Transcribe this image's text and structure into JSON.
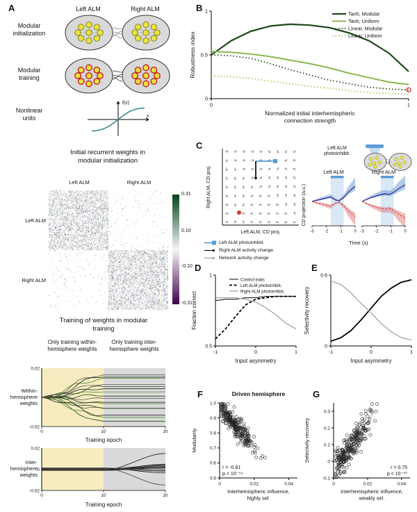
{
  "panelA": {
    "label": "A",
    "col_headers": [
      "Left ALM",
      "Right ALM"
    ],
    "row_labels": [
      "Modular initialization",
      "Modular training",
      "Nonlinear units"
    ],
    "sigmoid": {
      "fx_label": "f(x)",
      "x_label": "x"
    }
  },
  "panelB": {
    "label": "B",
    "chart_data": {
      "type": "line",
      "xlabel": "Normalized initial interhemispheric\nconnection strength",
      "ylabel": "Robustness index",
      "xlim": [
        0,
        1
      ],
      "ylim": [
        0,
        1
      ],
      "xticks": [
        0,
        1
      ],
      "yticks": [
        0,
        0.5,
        1
      ],
      "x": [
        0,
        0.1,
        0.2,
        0.3,
        0.4,
        0.5,
        0.6,
        0.7,
        0.8,
        0.9,
        1
      ],
      "series": [
        {
          "name": "Tanh, Modular",
          "color": "#1d4718",
          "style": "solid",
          "width": 2.2,
          "y": [
            0.5,
            0.66,
            0.77,
            0.83,
            0.85,
            0.84,
            0.81,
            0.75,
            0.66,
            0.52,
            0.31
          ]
        },
        {
          "name": "Tanh, Uniform",
          "color": "#8ab84e",
          "style": "solid",
          "width": 2,
          "y": [
            0.54,
            0.53,
            0.51,
            0.48,
            0.44,
            0.4,
            0.35,
            0.29,
            0.24,
            0.19,
            0.16
          ]
        },
        {
          "name": "Linear, Modular",
          "color": "#1d4718",
          "style": "dotted",
          "width": 1.8,
          "y": [
            0.5,
            0.49,
            0.46,
            0.4,
            0.33,
            0.27,
            0.21,
            0.17,
            0.13,
            0.11,
            0.1
          ]
        },
        {
          "name": "Linear, Uniform",
          "color": "#a9cb57",
          "style": "dotted",
          "width": 1.8,
          "y": [
            0.26,
            0.25,
            0.23,
            0.2,
            0.17,
            0.14,
            0.12,
            0.09,
            0.07,
            0.06,
            0.05
          ]
        }
      ],
      "endpoint_marker": {
        "x": 1,
        "y": 0.1,
        "color": "#d0342c"
      },
      "legend_position": "top-right"
    }
  },
  "heatmap": {
    "title": "Initial recurrent weights in modular initialization",
    "col_labels": [
      "Left ALM",
      "Right ALM"
    ],
    "row_labels": [
      "Left ALM",
      "Right ALM"
    ],
    "colorbar_ticks": [
      "0.31",
      "0.10",
      "-0.10",
      "-0.31"
    ],
    "chart_data": {
      "type": "heatmap",
      "structure": "2x2 block matrix: dense random weights within Left-Left and Right-Right blocks, sparse near-zero weights in off-diagonal blocks",
      "vmin": -0.31,
      "vmax": 0.31,
      "colormap": {
        "positive": "#00441b",
        "zero": "#f7f7f7",
        "negative": "#40004b"
      },
      "noise_seed": 42,
      "diag_density": 0.5,
      "offdiag_density": 0.03
    }
  },
  "training": {
    "title": "Training of weights in modular training",
    "phase_labels": [
      "Only training within-hemisphere weights",
      "Only training inter-hemisphere weights"
    ],
    "xlabel": "Training epoch",
    "chart_data": [
      {
        "type": "line",
        "mode": "within",
        "ylabel": "Within-hemisphere weights",
        "ylim": [
          -0.02,
          0.02
        ],
        "yticks": [
          0.02,
          -0.02
        ],
        "xlim": [
          0,
          20
        ],
        "xticks": [
          0,
          10,
          20
        ],
        "phase_split": 10,
        "n_lines": 16,
        "seed": 5,
        "line_colors": [
          "#1d4718",
          "#4e8c31",
          "#111111",
          "#555555"
        ],
        "phase_bg": [
          "#f6ecc0",
          "#d9d9d9"
        ]
      },
      {
        "type": "line",
        "mode": "inter",
        "ylabel": "Inter-hemisphere weights",
        "ylim": [
          -0.02,
          0.02
        ],
        "yticks": [
          0.02,
          0,
          -0.02
        ],
        "xlim": [
          0,
          20
        ],
        "xticks": [
          0,
          10,
          20
        ],
        "phase_split": 10,
        "n_lines": 14,
        "seed": 9,
        "line_colors": [
          "#111111",
          "#444444"
        ],
        "phase_bg": [
          "#f6ecc0",
          "#d9d9d9"
        ]
      }
    ]
  },
  "panelC": {
    "label": "C",
    "quiver": {
      "xlabel": "Left ALM, CD proj.",
      "ylabel": "Right ALM, CD proj."
    },
    "schematic_label": "Left ALM photoinhibit.",
    "legend": [
      {
        "label": "Left ALM photoinhibit.",
        "color": "#5b9bd5",
        "glyph": "line-square"
      },
      {
        "label": "Right ALM activity change",
        "color": "#111111",
        "glyph": "arrow"
      },
      {
        "label": "Network activity change",
        "color": "#9e9e9e",
        "glyph": "arrow"
      }
    ],
    "miniplots": {
      "titles": [
        "Left ALM",
        "Right ALM"
      ],
      "ylabel": "CD projection (a.u.)",
      "xlabel": "Time (s)",
      "xticks": [
        -3,
        -2,
        -1,
        0
      ],
      "inhibition_window": [
        -1.7,
        -0.8
      ]
    }
  },
  "panelD": {
    "label": "D",
    "chart_data": {
      "type": "line",
      "xlabel": "Input asymmetry",
      "ylabel": "Fraction correct",
      "xlim": [
        -1,
        1
      ],
      "ylim": [
        0.5,
        1
      ],
      "xticks": [
        -1,
        0,
        1
      ],
      "yticks": [
        0.5,
        1
      ],
      "x": [
        -1,
        -0.75,
        -0.5,
        -0.25,
        0,
        0.25,
        0.5,
        0.75,
        1
      ],
      "series": [
        {
          "name": "Control trials",
          "color": "#000000",
          "style": "solid",
          "width": 1,
          "y": [
            0.82,
            0.83,
            0.83,
            0.84,
            0.84,
            0.85,
            0.85,
            0.85,
            0.85
          ]
        },
        {
          "name": "Left ALM photoinhibit.",
          "color": "#000000",
          "style": "dashed",
          "width": 1.8,
          "y": [
            0.55,
            0.62,
            0.71,
            0.79,
            0.83,
            0.84,
            0.85,
            0.85,
            0.85
          ]
        },
        {
          "name": "Right ALM photoinhibit.",
          "color": "#a9a9a9",
          "style": "solid",
          "width": 1.4,
          "y": [
            0.84,
            0.84,
            0.84,
            0.83,
            0.81,
            0.77,
            0.72,
            0.66,
            0.62
          ]
        }
      ],
      "legend_position": "top"
    }
  },
  "panelE": {
    "label": "E",
    "chart_data": {
      "type": "line",
      "xlabel": "Input asymmetry",
      "ylabel": "Selectivity recovery",
      "xlim": [
        -1,
        1
      ],
      "ylim": [
        0,
        0.6
      ],
      "xticks": [
        -1,
        0,
        1
      ],
      "yticks": [
        0,
        0.6
      ],
      "x": [
        -1,
        -0.75,
        -0.5,
        -0.25,
        0,
        0.25,
        0.5,
        0.75,
        1
      ],
      "series": [
        {
          "name": "Left ALM photoinhibit.",
          "color": "#000000",
          "style": "solid",
          "width": 1.8,
          "y": [
            0.04,
            0.07,
            0.13,
            0.22,
            0.32,
            0.42,
            0.49,
            0.54,
            0.56
          ]
        },
        {
          "name": "Right ALM photoinhibit.",
          "color": "#a9a9a9",
          "style": "solid",
          "width": 1.4,
          "y": [
            0.55,
            0.52,
            0.45,
            0.36,
            0.28,
            0.19,
            0.12,
            0.07,
            0.05
          ]
        }
      ]
    }
  },
  "panelF": {
    "label": "F",
    "title": "Driven hemisphere",
    "chart_data": {
      "type": "scatter",
      "xlabel": "Interhemispheric influence,\nhighly sel.",
      "ylabel": "Modularity",
      "xlim": [
        0,
        0.045
      ],
      "ylim": [
        0.5,
        1.0
      ],
      "xticks": [
        0,
        0.02,
        0.04
      ],
      "yticks": [
        0.5,
        0.6,
        0.7,
        0.8,
        0.9,
        1.0
      ],
      "ytick_labels": [
        "0.5",
        "0.6",
        "0.7",
        "0.8",
        "0.9",
        "1.0"
      ],
      "correlation": "r = -0.81",
      "p_value": "p < 10⁻⁵⁹",
      "n_points": 260,
      "cloud": {
        "seed": 7,
        "x_mean": 0.009,
        "x_sd": 0.0055,
        "intercept": 0.97,
        "slope": -13,
        "noise_sd": 0.035
      }
    }
  },
  "panelG": {
    "label": "G",
    "chart_data": {
      "type": "scatter",
      "xlabel": "Interhemispheric influence,\nweakly sel.",
      "ylabel": "Selectivity recovery",
      "xlim": [
        0,
        0.045
      ],
      "ylim": [
        -0.1,
        0.35
      ],
      "xticks": [
        0,
        0.02,
        0.04
      ],
      "yticks": [
        -0.1,
        0,
        0.1,
        0.2,
        0.3
      ],
      "correlation": "r = 0.75",
      "p_value": "p < 10⁻⁹⁰",
      "n_points": 260,
      "cloud": {
        "seed": 11,
        "x_mean": 0.009,
        "x_sd": 0.0055,
        "intercept": -0.055,
        "slope": 14,
        "noise_sd": 0.045
      },
      "trend_line": {
        "x1": 0.001,
        "y1": -0.04,
        "x2": 0.024,
        "y2": 0.3,
        "color": "#9e9e9e"
      }
    }
  }
}
